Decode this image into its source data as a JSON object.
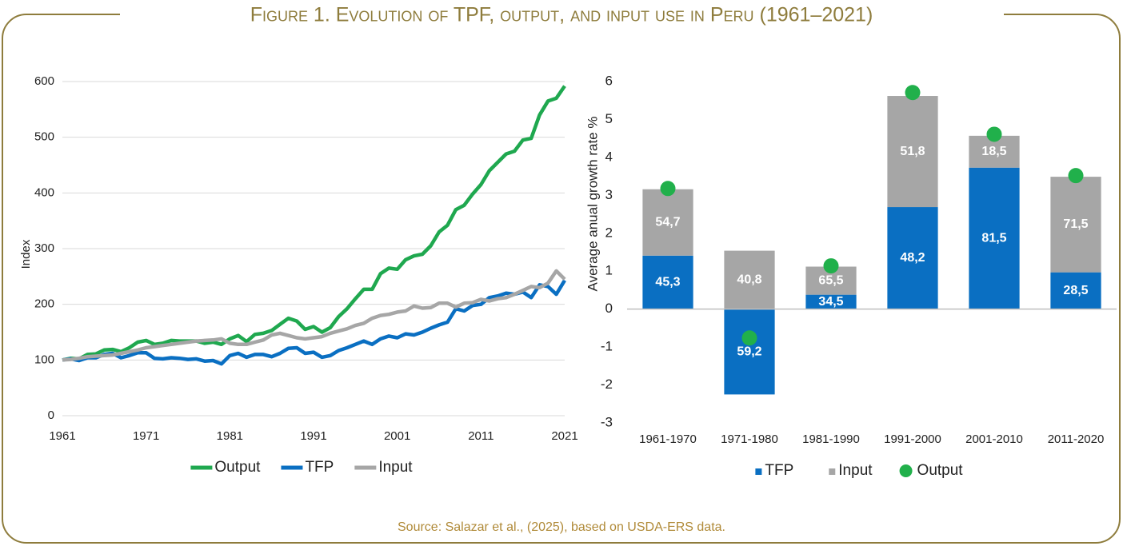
{
  "title": "Figure 1. Evolution of TPF, output, and input use in Peru (1961–2021)",
  "source": "Source: Salazar et al., (2025), based on USDA-ERS data.",
  "chart_data": [
    {
      "type": "line",
      "ylabel": "Index",
      "x": [
        1961,
        1962,
        1963,
        1964,
        1965,
        1966,
        1967,
        1968,
        1969,
        1970,
        1971,
        1972,
        1973,
        1974,
        1975,
        1976,
        1977,
        1978,
        1979,
        1980,
        1981,
        1982,
        1983,
        1984,
        1985,
        1986,
        1987,
        1988,
        1989,
        1990,
        1991,
        1992,
        1993,
        1994,
        1995,
        1996,
        1997,
        1998,
        1999,
        2000,
        2001,
        2002,
        2003,
        2004,
        2005,
        2006,
        2007,
        2008,
        2009,
        2010,
        2011,
        2012,
        2013,
        2014,
        2015,
        2016,
        2017,
        2018,
        2019,
        2020,
        2021
      ],
      "xlim": [
        1961,
        2021
      ],
      "xticks": [
        1961,
        1971,
        1981,
        1991,
        2001,
        2011,
        2021
      ],
      "ylim": [
        0,
        600
      ],
      "yticks": [
        0,
        100,
        200,
        300,
        400,
        500,
        600
      ],
      "grid": true,
      "series": [
        {
          "name": "Output",
          "color": "#1fa84f",
          "values": [
            100,
            103,
            102,
            110,
            111,
            118,
            119,
            115,
            122,
            132,
            135,
            128,
            130,
            135,
            134,
            134,
            134,
            130,
            132,
            128,
            138,
            144,
            133,
            146,
            148,
            153,
            164,
            175,
            170,
            155,
            160,
            150,
            158,
            178,
            192,
            210,
            227,
            227,
            255,
            265,
            263,
            280,
            287,
            290,
            305,
            330,
            342,
            370,
            378,
            398,
            415,
            440,
            455,
            470,
            475,
            495,
            498,
            540,
            565,
            570,
            592
          ]
        },
        {
          "name": "TFP",
          "color": "#0a6fc2",
          "values": [
            100,
            102,
            99,
            104,
            104,
            110,
            112,
            104,
            108,
            113,
            113,
            103,
            102,
            104,
            103,
            101,
            102,
            98,
            99,
            93,
            108,
            112,
            105,
            110,
            110,
            106,
            112,
            121,
            122,
            112,
            114,
            105,
            108,
            117,
            122,
            128,
            134,
            128,
            138,
            143,
            140,
            147,
            145,
            150,
            157,
            163,
            168,
            192,
            188,
            198,
            200,
            212,
            215,
            220,
            218,
            222,
            212,
            235,
            232,
            218,
            243
          ]
        },
        {
          "name": "Input",
          "color": "#a6a6a6",
          "values": [
            100,
            101,
            103,
            106,
            107,
            108,
            109,
            112,
            115,
            118,
            122,
            124,
            126,
            128,
            130,
            132,
            134,
            135,
            136,
            138,
            130,
            128,
            128,
            132,
            136,
            145,
            148,
            144,
            140,
            138,
            140,
            142,
            148,
            152,
            156,
            162,
            166,
            175,
            180,
            182,
            186,
            188,
            197,
            193,
            194,
            202,
            202,
            195,
            202,
            203,
            209,
            206,
            210,
            212,
            218,
            225,
            232,
            230,
            238,
            260,
            245
          ]
        }
      ]
    },
    {
      "type": "bar",
      "ylabel": "Average anual growth rate %",
      "categories": [
        "1961-1970",
        "1971-1980",
        "1981-1990",
        "1991-2000",
        "2001-2010",
        "2011-2020"
      ],
      "ylim": [
        -3,
        6
      ],
      "yticks": [
        -3,
        -2,
        -1,
        0,
        1,
        2,
        3,
        4,
        5,
        6
      ],
      "grid": false,
      "series": [
        {
          "name": "TFP",
          "color": "#0a6fc2",
          "kind": "bar",
          "values": [
            1.41,
            -2.25,
            0.38,
            2.69,
            3.73,
            0.97
          ],
          "share_labels": [
            "45,3",
            "59,2",
            "34,5",
            "48,2",
            "81,5",
            "28,5"
          ]
        },
        {
          "name": "Input",
          "color": "#a6a6a6",
          "kind": "bar",
          "values": [
            1.75,
            1.54,
            0.74,
            2.93,
            0.84,
            2.52
          ],
          "share_labels": [
            "54,7",
            "40,8",
            "65,5",
            "51,8",
            "18,5",
            "71,5"
          ]
        },
        {
          "name": "Output",
          "color": "#21b04b",
          "kind": "dot",
          "values": [
            3.18,
            -0.76,
            1.14,
            5.71,
            4.61,
            3.52
          ]
        }
      ]
    }
  ]
}
